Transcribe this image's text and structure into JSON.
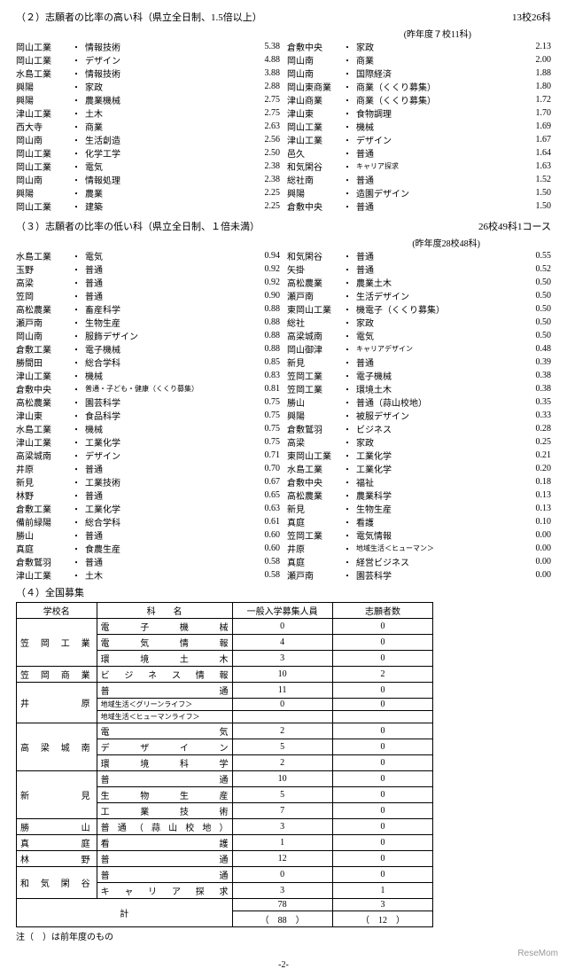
{
  "section2": {
    "title": "（２）志願者の比率の高い科（県立全日制、1.5倍以上）",
    "count": "13校26科",
    "prev": "(昨年度７校11科)",
    "left": [
      {
        "school": "岡山工業",
        "dept": "情報技術",
        "ratio": "5.38"
      },
      {
        "school": "岡山工業",
        "dept": "デザイン",
        "ratio": "4.88"
      },
      {
        "school": "水島工業",
        "dept": "情報技術",
        "ratio": "3.88"
      },
      {
        "school": "興陽",
        "dept": "家政",
        "ratio": "2.88"
      },
      {
        "school": "興陽",
        "dept": "農業機械",
        "ratio": "2.75"
      },
      {
        "school": "津山工業",
        "dept": "土木",
        "ratio": "2.75"
      },
      {
        "school": "西大寺",
        "dept": "商業",
        "ratio": "2.63"
      },
      {
        "school": "岡山南",
        "dept": "生活創造",
        "ratio": "2.56"
      },
      {
        "school": "岡山工業",
        "dept": "化学工学",
        "ratio": "2.50"
      },
      {
        "school": "岡山工業",
        "dept": "電気",
        "ratio": "2.38"
      },
      {
        "school": "岡山南",
        "dept": "情報処理",
        "ratio": "2.38"
      },
      {
        "school": "興陽",
        "dept": "農業",
        "ratio": "2.25"
      },
      {
        "school": "岡山工業",
        "dept": "建築",
        "ratio": "2.25"
      }
    ],
    "right": [
      {
        "school": "倉敷中央",
        "dept": "家政",
        "ratio": "2.13"
      },
      {
        "school": "岡山南",
        "dept": "商業",
        "ratio": "2.00"
      },
      {
        "school": "岡山南",
        "dept": "国際経済",
        "ratio": "1.88"
      },
      {
        "school": "岡山東商業",
        "dept": "商業（くくり募集）",
        "ratio": "1.80"
      },
      {
        "school": "津山商業",
        "dept": "商業（くくり募集）",
        "ratio": "1.72"
      },
      {
        "school": "津山東",
        "dept": "食物調理",
        "ratio": "1.70"
      },
      {
        "school": "岡山工業",
        "dept": "機械",
        "ratio": "1.69"
      },
      {
        "school": "津山工業",
        "dept": "デザイン",
        "ratio": "1.67"
      },
      {
        "school": "邑久",
        "dept": "普通",
        "ratio": "1.64"
      },
      {
        "school": "和気閑谷",
        "dept": "キャリア探求",
        "ratio": "1.63",
        "small": true
      },
      {
        "school": "総社南",
        "dept": "普通",
        "ratio": "1.52"
      },
      {
        "school": "興陽",
        "dept": "造園デザイン",
        "ratio": "1.50"
      },
      {
        "school": "倉敷中央",
        "dept": "普通",
        "ratio": "1.50"
      }
    ]
  },
  "section3": {
    "title": "（３）志願者の比率の低い科（県立全日制、１倍未満）",
    "count": "26校49科1コース",
    "prev": "(昨年度28校48科)",
    "left": [
      {
        "school": "水島工業",
        "dept": "電気",
        "ratio": "0.94"
      },
      {
        "school": "玉野",
        "dept": "普通",
        "ratio": "0.92"
      },
      {
        "school": "高梁",
        "dept": "普通",
        "ratio": "0.92"
      },
      {
        "school": "笠岡",
        "dept": "普通",
        "ratio": "0.90"
      },
      {
        "school": "高松農業",
        "dept": "畜産科学",
        "ratio": "0.88"
      },
      {
        "school": "瀬戸南",
        "dept": "生物生産",
        "ratio": "0.88"
      },
      {
        "school": "岡山南",
        "dept": "服飾デザイン",
        "ratio": "0.88"
      },
      {
        "school": "倉敷工業",
        "dept": "電子機械",
        "ratio": "0.88"
      },
      {
        "school": "勝間田",
        "dept": "総合学科",
        "ratio": "0.85"
      },
      {
        "school": "津山工業",
        "dept": "機械",
        "ratio": "0.83"
      },
      {
        "school": "倉敷中央",
        "dept": "普通・子ども・健康（くくり募集）",
        "ratio": "0.81",
        "small": true
      },
      {
        "school": "高松農業",
        "dept": "園芸科学",
        "ratio": "0.75"
      },
      {
        "school": "津山東",
        "dept": "食品科学",
        "ratio": "0.75"
      },
      {
        "school": "水島工業",
        "dept": "機械",
        "ratio": "0.75"
      },
      {
        "school": "津山工業",
        "dept": "工業化学",
        "ratio": "0.75"
      },
      {
        "school": "高梁城南",
        "dept": "デザイン",
        "ratio": "0.71"
      },
      {
        "school": "井原",
        "dept": "普通",
        "ratio": "0.70"
      },
      {
        "school": "新見",
        "dept": "工業技術",
        "ratio": "0.67"
      },
      {
        "school": "林野",
        "dept": "普通",
        "ratio": "0.65"
      },
      {
        "school": "倉敷工業",
        "dept": "工業化学",
        "ratio": "0.63"
      },
      {
        "school": "備前緑陽",
        "dept": "総合学科",
        "ratio": "0.61"
      },
      {
        "school": "勝山",
        "dept": "普通",
        "ratio": "0.60"
      },
      {
        "school": "真庭",
        "dept": "食農生産",
        "ratio": "0.60"
      },
      {
        "school": "倉敷鷲羽",
        "dept": "普通",
        "ratio": "0.58"
      },
      {
        "school": "津山工業",
        "dept": "土木",
        "ratio": "0.58"
      }
    ],
    "right": [
      {
        "school": "和気閑谷",
        "dept": "普通",
        "ratio": "0.55"
      },
      {
        "school": "矢掛",
        "dept": "普通",
        "ratio": "0.52"
      },
      {
        "school": "高松農業",
        "dept": "農業土木",
        "ratio": "0.50"
      },
      {
        "school": "瀬戸南",
        "dept": "生活デザイン",
        "ratio": "0.50"
      },
      {
        "school": "東岡山工業",
        "dept": "機電子（くくり募集）",
        "ratio": "0.50"
      },
      {
        "school": "総社",
        "dept": "家政",
        "ratio": "0.50"
      },
      {
        "school": "高梁城南",
        "dept": "電気",
        "ratio": "0.50"
      },
      {
        "school": "岡山御津",
        "dept": "キャリアデザイン",
        "ratio": "0.48",
        "small": true
      },
      {
        "school": "新見",
        "dept": "普通",
        "ratio": "0.39"
      },
      {
        "school": "笠岡工業",
        "dept": "電子機械",
        "ratio": "0.38"
      },
      {
        "school": "笠岡工業",
        "dept": "環境土木",
        "ratio": "0.38"
      },
      {
        "school": "勝山",
        "dept": "普通（蒜山校地）",
        "ratio": "0.35"
      },
      {
        "school": "興陽",
        "dept": "被服デザイン",
        "ratio": "0.33"
      },
      {
        "school": "倉敷鷲羽",
        "dept": "ビジネス",
        "ratio": "0.28"
      },
      {
        "school": "高梁",
        "dept": "家政",
        "ratio": "0.25"
      },
      {
        "school": "東岡山工業",
        "dept": "工業化学",
        "ratio": "0.21"
      },
      {
        "school": "水島工業",
        "dept": "工業化学",
        "ratio": "0.20"
      },
      {
        "school": "倉敷中央",
        "dept": "福祉",
        "ratio": "0.18"
      },
      {
        "school": "高松農業",
        "dept": "農業科学",
        "ratio": "0.13"
      },
      {
        "school": "新見",
        "dept": "生物生産",
        "ratio": "0.13"
      },
      {
        "school": "真庭",
        "dept": "看護",
        "ratio": "0.10"
      },
      {
        "school": "笠岡工業",
        "dept": "電気情報",
        "ratio": "0.00"
      },
      {
        "school": "井原",
        "dept": "地域生活＜ヒューマン＞",
        "ratio": "0.00",
        "small": true
      },
      {
        "school": "真庭",
        "dept": "経営ビジネス",
        "ratio": "0.00"
      },
      {
        "school": "瀬戸南",
        "dept": "園芸科学",
        "ratio": "0.00"
      }
    ]
  },
  "section4": {
    "title": "（４）全国募集",
    "headers": [
      "学校名",
      "科　　名",
      "一般入学募集人員",
      "志願者数"
    ],
    "rows": [
      {
        "school": "笠岡工業",
        "depts": [
          [
            "電 子 機 械",
            "0",
            "0"
          ],
          [
            "電 気 情 報",
            "4",
            "0"
          ],
          [
            "環 境 土 木",
            "3",
            "0"
          ]
        ]
      },
      {
        "school": "笠岡商業",
        "depts": [
          [
            "ビジネス情報",
            "10",
            "2"
          ]
        ]
      },
      {
        "school": "井　原",
        "depts": [
          [
            "普　　　通",
            "11",
            "0"
          ],
          [
            "地域生活＜グリーンライフ＞",
            "0",
            "0",
            true
          ],
          [
            "地域生活＜ヒューマンライフ＞",
            "",
            "",
            true
          ]
        ]
      },
      {
        "school": "高梁城南",
        "depts": [
          [
            "電　　　気",
            "2",
            "0"
          ],
          [
            "デ ザ イ ン",
            "5",
            "0"
          ],
          [
            "環 境 科 学",
            "2",
            "0"
          ]
        ]
      },
      {
        "school": "新　見",
        "depts": [
          [
            "普　　　通",
            "10",
            "0"
          ],
          [
            "生 物 生 産",
            "5",
            "0"
          ],
          [
            "工 業 技 術",
            "7",
            "0"
          ]
        ]
      },
      {
        "school": "勝　　山",
        "depts": [
          [
            "普通（蒜山校地）",
            "3",
            "0"
          ]
        ]
      },
      {
        "school": "真　　庭",
        "depts": [
          [
            "看　　　護",
            "1",
            "0"
          ]
        ]
      },
      {
        "school": "林　　野",
        "depts": [
          [
            "普　　　通",
            "12",
            "0"
          ]
        ]
      },
      {
        "school": "和気閑谷",
        "depts": [
          [
            "普　　　通",
            "0",
            "0"
          ],
          [
            "キャリア探求",
            "3",
            "1"
          ]
        ]
      }
    ],
    "total_label": "計",
    "total1": "78",
    "total2": "3",
    "prev1": "（　88　）",
    "prev2": "（　12　）"
  },
  "note": "注（　）は前年度のもの",
  "page": "-2-",
  "watermark": "ReseMom"
}
